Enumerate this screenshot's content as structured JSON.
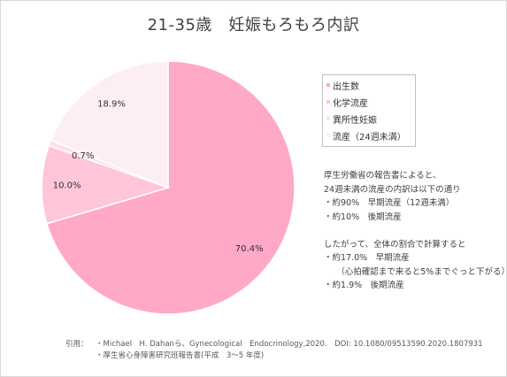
{
  "title": "21-35歳　妊娠もろもろ内訳",
  "chart_data": {
    "type": "pie",
    "categories": [
      "出生数",
      "化学流産",
      "異所性妊娠",
      "流産（24週未満）"
    ],
    "values": [
      70.4,
      10.0,
      0.7,
      18.9
    ],
    "value_labels": [
      "70.4%",
      "10.0%",
      "0.7%",
      "18.9%"
    ],
    "colors": [
      "#ffa8c8",
      "#ffc6da",
      "#ffe0ea",
      "#fdeef3"
    ],
    "legend_position": "right"
  },
  "notes": [
    "厚生労働省の報告書によると、",
    "24週未満の流産の内訳は以下の通り",
    "・約90%　早期流産（12週未満）",
    "・約10%　後期流産",
    "",
    "したがって、全体の割合で計算すると",
    "・約17.0%　早期流産",
    "　　（心拍確認まで来ると5%までぐっと下がる）",
    "・約1.9%　後期流産"
  ],
  "citation": {
    "prefix": "引用：",
    "lines": [
      "・Michael　H. Dahanら、Gynecological　Endocrinology,2020.　DOI: 10.1080/09513590.2020.1807931",
      "・厚生省心身障害研究班報告書(平成　3～5 年度)"
    ]
  }
}
